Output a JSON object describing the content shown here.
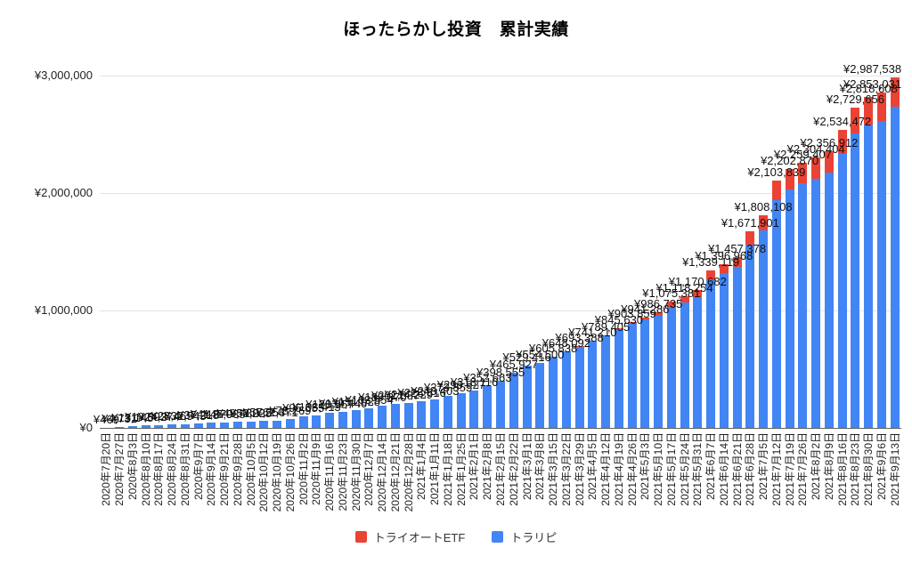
{
  "title": "ほったらかし投資　累計実績",
  "y_axis": {
    "ticks": [
      "¥0",
      "¥1,000,000",
      "¥2,000,000",
      "¥3,000,000"
    ],
    "values": [
      0,
      1000000,
      2000000,
      3000000
    ]
  },
  "legend": [
    {
      "label": "トライオートETF",
      "color": "#ea4335"
    },
    {
      "label": "トラリピ",
      "color": "#4285f4"
    }
  ],
  "chart_data": {
    "type": "bar",
    "stacked": true,
    "title": "ほったらかし投資　累計実績",
    "xlabel": "",
    "ylabel": "",
    "ylim": [
      0,
      3000000
    ],
    "grid": true,
    "legend_position": "bottom",
    "currency": "¥",
    "categories": [
      "2020年7月20日",
      "2020年7月27日",
      "2020年8月3日",
      "2020年8月10日",
      "2020年8月17日",
      "2020年8月24日",
      "2020年8月31日",
      "2020年9月7日",
      "2020年9月14日",
      "2020年9月21日",
      "2020年9月28日",
      "2020年10月5日",
      "2020年10月12日",
      "2020年10月19日",
      "2020年10月26日",
      "2020年11月2日",
      "2020年11月9日",
      "2020年11月16日",
      "2020年11月23日",
      "2020年11月30日",
      "2020年12月7日",
      "2020年12月14日",
      "2020年12月21日",
      "2020年12月28日",
      "2021年1月4日",
      "2021年1月11日",
      "2021年1月18日",
      "2021年1月25日",
      "2021年2月1日",
      "2021年2月8日",
      "2021年2月15日",
      "2021年2月22日",
      "2021年3月1日",
      "2021年3月8日",
      "2021年3月15日",
      "2021年3月22日",
      "2021年3月29日",
      "2021年4月5日",
      "2021年4月12日",
      "2021年4月19日",
      "2021年4月26日",
      "2021年5月3日",
      "2021年5月10日",
      "2021年5月17日",
      "2021年5月24日",
      "2021年5月31日",
      "2021年6月7日",
      "2021年6月14日",
      "2021年6月21日",
      "2021年6月28日",
      "2021年7月5日",
      "2021年7月12日",
      "2021年7月19日",
      "2021年7月26日",
      "2021年8月2日",
      "2021年8月9日",
      "2021年8月16日",
      "2021年8月23日",
      "2021年8月30日",
      "2021年9月6日",
      "2021年9月13日"
    ],
    "totals": [
      469,
      4731,
      13145,
      19892,
      24374,
      28465,
      32943,
      37218,
      41870,
      45935,
      49482,
      53028,
      57554,
      62371,
      78269,
      95555,
      108413,
      128957,
      139446,
      151028,
      163554,
      189370,
      201887,
      214229,
      228816,
      243403,
      273555,
      296927,
      318116,
      352663,
      398555,
      465927,
      529416,
      554500,
      605838,
      648092,
      693388,
      741210,
      789405,
      845630,
      903859,
      941286,
      986735,
      1075381,
      1118254,
      1170682,
      1339119,
      1396968,
      1457378,
      1671901,
      1808108,
      2103839,
      2202870,
      2259407,
      2304404,
      2356912,
      2534472,
      2729656,
      2818608,
      2853031,
      2987538
    ],
    "series": [
      {
        "name": "トライオートETF",
        "color": "#ea4335",
        "values": [
          0,
          0,
          0,
          0,
          0,
          0,
          0,
          0,
          0,
          0,
          0,
          0,
          0,
          0,
          0,
          0,
          0,
          0,
          0,
          0,
          0,
          0,
          0,
          0,
          0,
          0,
          0,
          0,
          0,
          0,
          0,
          0,
          0,
          0,
          0,
          0,
          1500,
          2400,
          3200,
          5100,
          9000,
          14000,
          32000,
          46000,
          52000,
          60000,
          72000,
          80000,
          88000,
          112000,
          128000,
          162000,
          172000,
          177000,
          181000,
          186000,
          202000,
          222000,
          232000,
          242000,
          252000
        ]
      },
      {
        "name": "トラリピ",
        "color": "#4285f4",
        "values": [
          469,
          4731,
          13145,
          19892,
          24374,
          28465,
          32943,
          37218,
          41870,
          45935,
          49482,
          53028,
          57554,
          62371,
          78269,
          95555,
          108413,
          128957,
          139446,
          151028,
          163554,
          189370,
          201887,
          214229,
          228816,
          243403,
          273555,
          296927,
          318116,
          352663,
          398555,
          465927,
          529416,
          554500,
          605838,
          648092,
          691888,
          738810,
          786205,
          840530,
          894859,
          927286,
          954735,
          1029381,
          1066254,
          1110682,
          1267119,
          1316968,
          1369378,
          1559901,
          1680108,
          1941839,
          2030870,
          2082407,
          2123404,
          2170912,
          2332472,
          2507656,
          2586608,
          2611031,
          2735538
        ]
      }
    ]
  }
}
